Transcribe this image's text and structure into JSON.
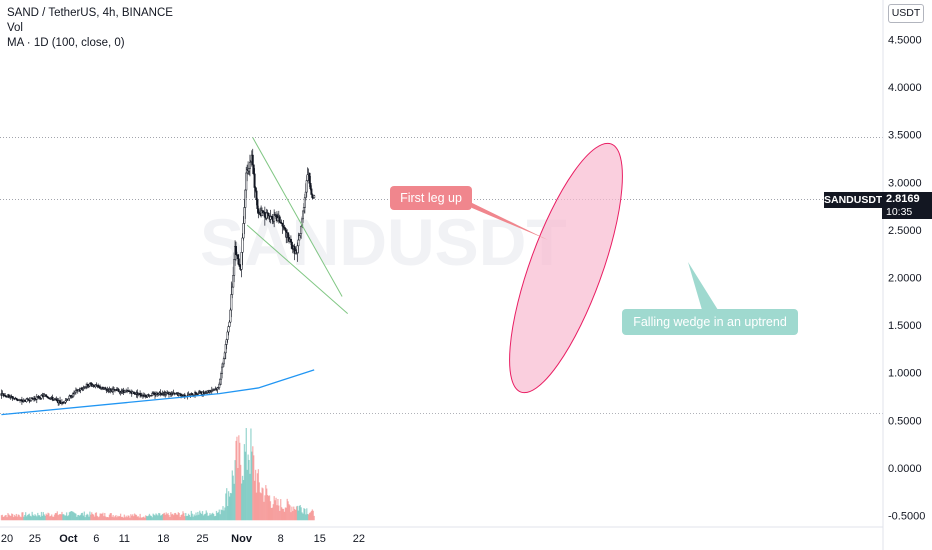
{
  "legend": {
    "title": "SAND / TetherUS, 4h, BINANCE",
    "vol": "Vol",
    "ma": "MA · 1D (100, close, 0)"
  },
  "watermark": "SANDUSDT",
  "currency_badge": "USDT",
  "price_badge": {
    "symbol": "SANDUSDT",
    "price": "2.8169",
    "countdown": "10:35"
  },
  "annotations": {
    "first_leg": "First leg up",
    "wedge": "Falling wedge in an uptrend"
  },
  "colors": {
    "up": "#26a69a",
    "down": "#ef5350",
    "candle": "#131722",
    "ma": "#2196f3",
    "wedge": "#81c784",
    "ellipse_fill": "#f8bbd0",
    "ellipse_stroke": "#e91e63"
  },
  "chart_data": {
    "type": "candlestick",
    "title": "SAND / TetherUS, 4h, BINANCE",
    "y_ticks": [
      "4.5000",
      "4.0000",
      "3.5000",
      "3.0000",
      "2.5000",
      "2.0000",
      "1.5000",
      "1.0000",
      "0.5000",
      "0.0000",
      "-0.5000"
    ],
    "ylim": [
      -0.55,
      4.75
    ],
    "x_ticks": [
      {
        "label": "20",
        "date": "2021-09-20"
      },
      {
        "label": "25",
        "date": "2021-09-25"
      },
      {
        "label": "Oct",
        "date": "2021-10-01"
      },
      {
        "label": "6",
        "date": "2021-10-06"
      },
      {
        "label": "11",
        "date": "2021-10-11"
      },
      {
        "label": "18",
        "date": "2021-10-18"
      },
      {
        "label": "25",
        "date": "2021-10-25"
      },
      {
        "label": "Nov",
        "date": "2021-11-01"
      },
      {
        "label": "8",
        "date": "2021-11-08"
      },
      {
        "label": "15",
        "date": "2021-11-15"
      },
      {
        "label": "22",
        "date": "2021-11-22"
      }
    ],
    "price_path": [
      {
        "date": "2021-09-19",
        "close": 0.78
      },
      {
        "date": "2021-09-23",
        "close": 0.7
      },
      {
        "date": "2021-09-27",
        "close": 0.76
      },
      {
        "date": "2021-09-30",
        "close": 0.68
      },
      {
        "date": "2021-10-03",
        "close": 0.82
      },
      {
        "date": "2021-10-05",
        "close": 0.88
      },
      {
        "date": "2021-10-08",
        "close": 0.82
      },
      {
        "date": "2021-10-12",
        "close": 0.8
      },
      {
        "date": "2021-10-15",
        "close": 0.76
      },
      {
        "date": "2021-10-18",
        "close": 0.79
      },
      {
        "date": "2021-10-22",
        "close": 0.76
      },
      {
        "date": "2021-10-26",
        "close": 0.8
      },
      {
        "date": "2021-10-28",
        "close": 0.84
      },
      {
        "date": "2021-10-29",
        "close": 1.15
      },
      {
        "date": "2021-10-30",
        "close": 1.55
      },
      {
        "date": "2021-10-31",
        "close": 2.3
      },
      {
        "date": "2021-11-01",
        "close": 2.1
      },
      {
        "date": "2021-11-02",
        "close": 3.1
      },
      {
        "date": "2021-11-03",
        "close": 3.25
      },
      {
        "date": "2021-11-04",
        "close": 2.7
      },
      {
        "date": "2021-11-06",
        "close": 2.65
      },
      {
        "date": "2021-11-08",
        "close": 2.6
      },
      {
        "date": "2021-11-10",
        "close": 2.35
      },
      {
        "date": "2021-11-11",
        "close": 2.25
      },
      {
        "date": "2021-11-12",
        "close": 2.6
      },
      {
        "date": "2021-11-13",
        "close": 3.1
      },
      {
        "date": "2021-11-14",
        "close": 2.82
      }
    ],
    "ma_path": [
      {
        "date": "2021-09-19",
        "value": 0.56
      },
      {
        "date": "2021-10-28",
        "value": 0.78
      },
      {
        "date": "2021-11-04",
        "value": 0.84
      },
      {
        "date": "2021-11-14",
        "value": 1.03
      }
    ],
    "wedge_upper": [
      {
        "date": "2021-11-03",
        "value": 3.47
      },
      {
        "date": "2021-11-19",
        "value": 1.8
      }
    ],
    "wedge_lower": [
      {
        "date": "2021-11-02",
        "value": 2.55
      },
      {
        "date": "2021-11-20",
        "value": 1.62
      }
    ],
    "horizontal_levels": [
      3.47,
      2.82,
      0.57
    ],
    "volume_baseline": -0.55,
    "volume": [
      {
        "date": "2021-09-19",
        "value": -0.47
      },
      {
        "date": "2021-10-01",
        "value": -0.45
      },
      {
        "date": "2021-10-15",
        "value": -0.48
      },
      {
        "date": "2021-10-28",
        "value": -0.43
      },
      {
        "date": "2021-10-30",
        "value": -0.05
      },
      {
        "date": "2021-10-31",
        "value": 0.35
      },
      {
        "date": "2021-11-02",
        "value": 0.45
      },
      {
        "date": "2021-11-02",
        "value": 0.7
      },
      {
        "date": "2021-11-04",
        "value": 0.0
      },
      {
        "date": "2021-11-07",
        "value": -0.3
      },
      {
        "date": "2021-11-12",
        "value": -0.35
      },
      {
        "date": "2021-11-14",
        "value": -0.45
      }
    ],
    "last_price": 2.8169
  }
}
